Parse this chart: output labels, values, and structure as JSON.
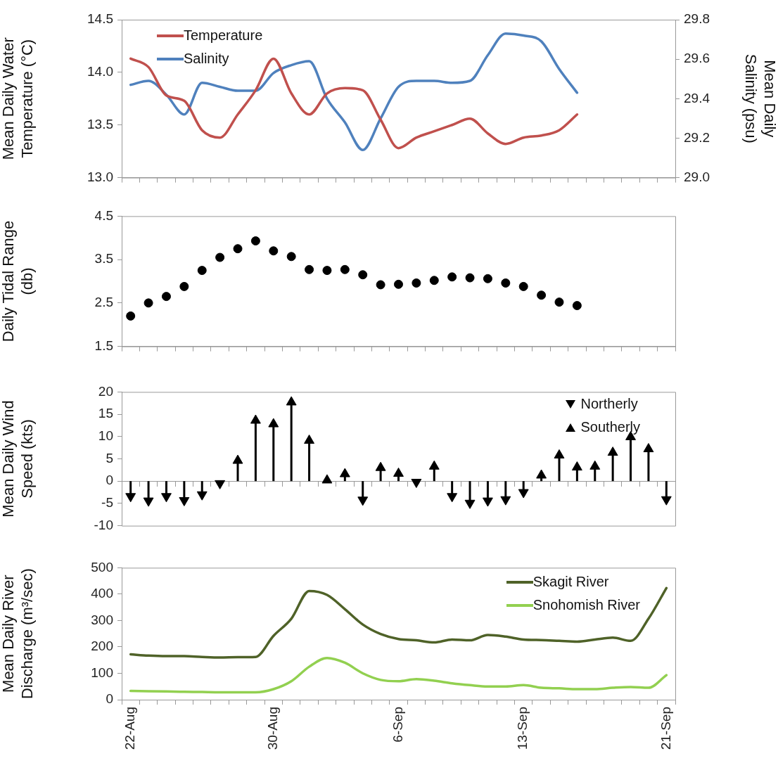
{
  "chart_data": [
    {
      "type": "line",
      "ylabel": "Mean Daily Water Temperature (°C)",
      "y2label": "Mean Daily Salinity (psu)",
      "categories": [
        null,
        null,
        null,
        null,
        null,
        null,
        null,
        null,
        null,
        null,
        null,
        null,
        null,
        null,
        null,
        null,
        null,
        null,
        null,
        null,
        null,
        null,
        null,
        null,
        null,
        null,
        null,
        null,
        null,
        null,
        null
      ],
      "series": [
        {
          "name": "Temperature",
          "color": "#c0504d",
          "values": [
            14.13,
            14.05,
            13.78,
            13.73,
            13.45,
            13.38,
            13.6,
            13.83,
            14.13,
            13.8,
            13.6,
            13.8,
            13.85,
            13.83,
            13.55,
            13.28,
            13.38,
            13.44,
            13.5,
            13.56,
            13.42,
            13.32,
            13.38,
            13.4,
            13.45,
            13.6,
            null,
            null,
            null,
            null,
            null
          ]
        },
        {
          "name": "Salinity",
          "color": "#4f81bd",
          "axis": "y2",
          "values": [
            29.47,
            29.49,
            29.42,
            29.32,
            29.48,
            29.46,
            29.44,
            29.44,
            29.53,
            29.57,
            29.59,
            29.4,
            29.28,
            29.14,
            29.3,
            29.46,
            29.49,
            29.49,
            29.48,
            29.49,
            29.62,
            29.73,
            29.72,
            29.69,
            29.55,
            29.43,
            null,
            null,
            null,
            null,
            null
          ]
        }
      ],
      "ylim": [
        13,
        14.5
      ],
      "yticks": [
        {
          "value": 13,
          "label": "13.0"
        },
        13.5,
        {
          "value": 14,
          "label": "14.0"
        },
        14.5
      ],
      "y2lim": [
        29,
        29.8
      ],
      "y2ticks": [
        {
          "value": 29,
          "label": "29.0"
        },
        29.2,
        29.4,
        29.6,
        29.8
      ],
      "marker": "none",
      "legend": "top left",
      "tick_labels": "y"
    },
    {
      "type": "scatter",
      "ylabel": "Daily Tidal Range (db)",
      "categories": [
        null,
        null,
        null,
        null,
        null,
        null,
        null,
        null,
        null,
        null,
        null,
        null,
        null,
        null,
        null,
        null,
        null,
        null,
        null,
        null,
        null,
        null,
        null,
        null,
        null,
        null,
        null,
        null,
        null,
        null,
        null
      ],
      "values": [
        2.2,
        2.5,
        2.65,
        2.88,
        3.25,
        3.55,
        3.75,
        3.93,
        3.7,
        3.57,
        3.27,
        3.25,
        3.27,
        3.15,
        2.92,
        2.93,
        2.96,
        3.02,
        3.1,
        3.08,
        3.06,
        2.96,
        2.88,
        2.68,
        2.52,
        2.44,
        null,
        null,
        null,
        null,
        null
      ],
      "color": "#000000",
      "marker": "circle",
      "ylim": [
        1.5,
        4.5
      ],
      "yticks": [
        1.5,
        2.5,
        3.5,
        4.5
      ],
      "tick_labels": "y"
    },
    {
      "type": "lollipop",
      "marker": "triangle",
      "ylabel": "Mean Daily Wind Speed (kts)",
      "categories": [
        null,
        null,
        null,
        null,
        null,
        null,
        null,
        null,
        null,
        null,
        null,
        null,
        null,
        null,
        null,
        null,
        null,
        null,
        null,
        null,
        null,
        null,
        null,
        null,
        null,
        null,
        null,
        null,
        null,
        null,
        null
      ],
      "series": [
        {
          "name": "Northerly",
          "color": "#000000",
          "values": [
            -3.4,
            -4.4,
            -3.4,
            -4.3,
            -3,
            -0.5,
            null,
            null,
            null,
            null,
            null,
            null,
            null,
            -4.2,
            null,
            null,
            -0.2,
            null,
            -3.4,
            -4.9,
            -4.4,
            -4.1,
            -2.5,
            null,
            null,
            null,
            null,
            null,
            null,
            null,
            -4.1
          ]
        },
        {
          "name": "Southerly",
          "color": "#000000",
          "values": [
            null,
            null,
            null,
            null,
            null,
            null,
            4.6,
            13.6,
            12.8,
            17.7,
            9.1,
            0.2,
            1.6,
            null,
            3,
            1.7,
            null,
            3.3,
            null,
            null,
            null,
            null,
            null,
            1.3,
            5.8,
            3.1,
            3.3,
            6.4,
            9.9,
            7.2,
            null
          ]
        }
      ],
      "ylim": [
        -10,
        20
      ],
      "yticks": [
        -10,
        -5,
        0,
        5,
        10,
        15,
        20
      ],
      "legend": "top right",
      "tick_labels": "y"
    },
    {
      "type": "line",
      "ylabel": "Mean Daily River Discharge (m³/sec)",
      "categories": [
        "22-Aug",
        null,
        null,
        null,
        null,
        null,
        null,
        null,
        "30-Aug",
        null,
        null,
        null,
        null,
        null,
        null,
        "6-Sep",
        null,
        null,
        null,
        null,
        null,
        null,
        "13-Sep",
        null,
        null,
        null,
        null,
        null,
        null,
        null,
        "21-Sep"
      ],
      "series": [
        {
          "name": "Skagit River",
          "color": "#4f6228",
          "values": [
            172,
            167,
            165,
            165,
            162,
            160,
            161,
            162,
            242,
            307,
            412,
            397,
            343,
            285,
            249,
            230,
            225,
            217,
            228,
            225,
            245,
            239,
            228,
            226,
            223,
            220,
            228,
            235,
            223,
            307,
            423
          ]
        },
        {
          "name": "Snohomish River",
          "color": "#92d050",
          "values": [
            33,
            32,
            31,
            30,
            29,
            28,
            28,
            28,
            40,
            70,
            125,
            158,
            140,
            100,
            75,
            70,
            78,
            72,
            62,
            55,
            50,
            50,
            55,
            45,
            43,
            40,
            40,
            45,
            48,
            45,
            93
          ]
        }
      ],
      "ylim": [
        0,
        500
      ],
      "yticks": [
        0,
        100,
        200,
        300,
        400,
        500
      ],
      "marker": "none",
      "legend": "top right"
    }
  ]
}
